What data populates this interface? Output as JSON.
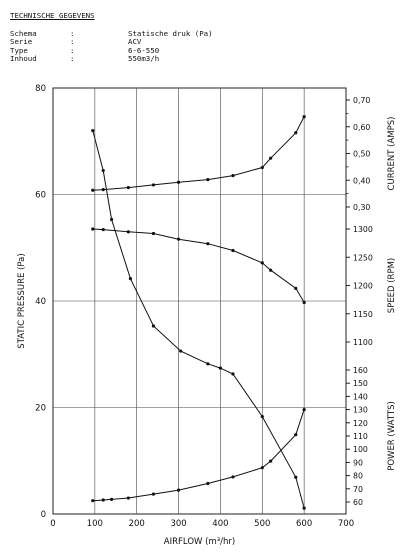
{
  "header": {
    "title": "TECHNISCHE GEGEVENS",
    "specs": [
      {
        "label": "Schema",
        "sep": ":",
        "value": "Statische druk (Pa)"
      },
      {
        "label": "Serie",
        "sep": ":",
        "value": "ACV"
      },
      {
        "label": "Type",
        "sep": ":",
        "value": "6-6-550"
      },
      {
        "label": "Inhoud",
        "sep": ":",
        "value": "550m3/h"
      }
    ]
  },
  "chart_data": {
    "type": "line",
    "xlabel": "AIRFLOW (m³/hr)",
    "xlim": [
      0,
      700
    ],
    "x_ticks": [
      "0",
      "100",
      "200",
      "300",
      "400",
      "500",
      "600",
      "700"
    ],
    "grid": true,
    "axes": {
      "static_pressure": {
        "label": "STATIC PRESSURE (Pa)",
        "range": [
          0,
          80
        ],
        "ticks": [
          "0",
          "20",
          "40",
          "60",
          "80"
        ],
        "side": "left"
      },
      "current": {
        "label": "CURRENT (AMPS)",
        "range": [
          0.3,
          0.7
        ],
        "ticks": [
          "0,30",
          "0,40",
          "0,50",
          "0,60",
          "0,70"
        ],
        "side": "right-top"
      },
      "speed": {
        "label": "SPEED (RPM)",
        "range": [
          1100,
          1300
        ],
        "ticks": [
          "1100",
          "1150",
          "1200",
          "1250",
          "1300"
        ],
        "side": "right-middle"
      },
      "power": {
        "label": "POWER (WATTS)",
        "range": [
          60,
          160
        ],
        "ticks": [
          "60",
          "70",
          "80",
          "90",
          "100",
          "110",
          "120",
          "130",
          "140",
          "150",
          "160"
        ],
        "side": "right-bottom"
      }
    },
    "series": [
      {
        "axis": "static_pressure",
        "x": [
          95,
          120,
          140,
          185,
          240,
          305,
          370,
          400,
          430,
          500,
          580,
          600
        ],
        "y": [
          72,
          64.5,
          55.3,
          44.2,
          35.3,
          30.6,
          28.2,
          27.4,
          26.3,
          18.3,
          6.9,
          1.1
        ]
      },
      {
        "axis": "current",
        "x": [
          95,
          120,
          180,
          240,
          300,
          370,
          430,
          500,
          520,
          580,
          600
        ],
        "y": [
          0.3625,
          0.365,
          0.3725,
          0.3825,
          0.3925,
          0.4025,
          0.4175,
          0.4475,
          0.4825,
          0.5775,
          0.6375
        ]
      },
      {
        "axis": "speed",
        "x": [
          95,
          120,
          180,
          240,
          300,
          370,
          430,
          500,
          520,
          580,
          600
        ],
        "y": [
          1300,
          1299,
          1295,
          1292,
          1282,
          1274,
          1262,
          1240,
          1227,
          1195,
          1170
        ]
      },
      {
        "axis": "power",
        "x": [
          95,
          120,
          140,
          180,
          240,
          300,
          370,
          430,
          500,
          520,
          580,
          600
        ],
        "y": [
          61,
          61.5,
          62,
          63,
          66,
          69,
          74,
          79,
          86,
          91,
          111,
          130
        ]
      }
    ]
  }
}
